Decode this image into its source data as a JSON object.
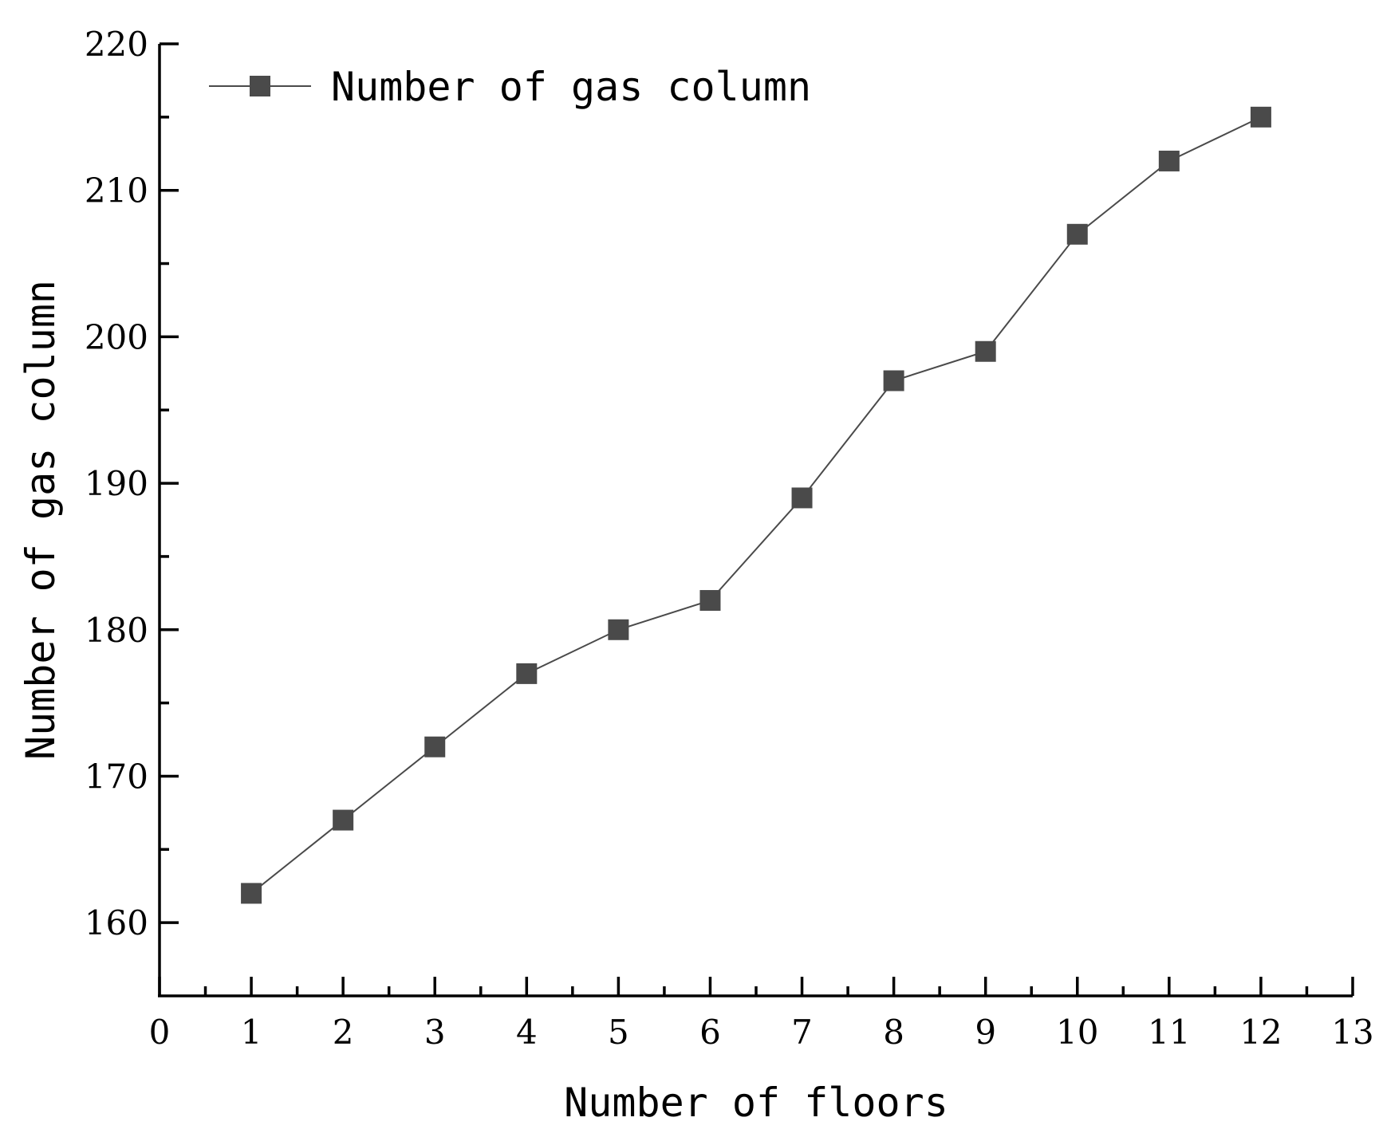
{
  "chart_data": {
    "type": "line",
    "xlabel": "Number of floors",
    "ylabel": "Number of gas column",
    "xlim": [
      0,
      13
    ],
    "ylim": [
      155,
      220
    ],
    "xticks": [
      0,
      1,
      2,
      3,
      4,
      5,
      6,
      7,
      8,
      9,
      10,
      11,
      12,
      13
    ],
    "yticks": [
      160,
      170,
      180,
      190,
      200,
      210,
      220
    ],
    "grid": false,
    "legend_position": "top-left",
    "series": [
      {
        "name": "Number of gas column",
        "color": "#4a4a4a",
        "marker": "square",
        "x": [
          1,
          2,
          3,
          4,
          5,
          6,
          7,
          8,
          9,
          10,
          11,
          12
        ],
        "y": [
          162,
          167,
          172,
          177,
          180,
          182,
          189,
          197,
          199,
          207,
          212,
          215
        ]
      }
    ]
  }
}
